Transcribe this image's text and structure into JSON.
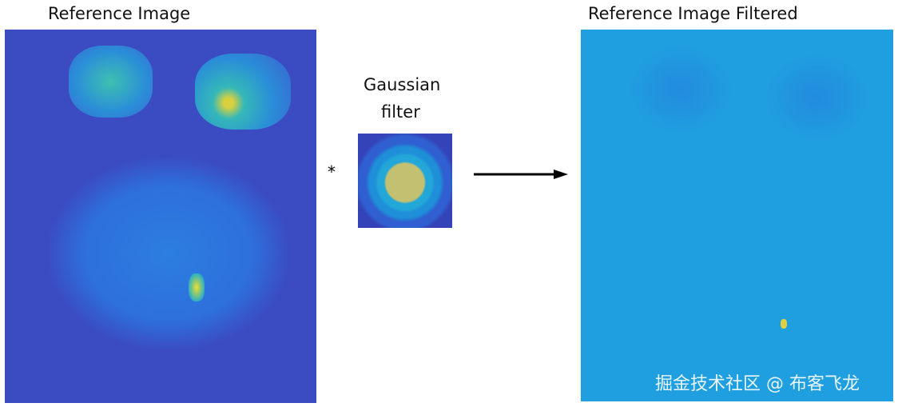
{
  "left_panel": {
    "title": "Reference Image"
  },
  "operator": "*",
  "filter": {
    "title_line1": "Gaussian",
    "title_line2": "filter"
  },
  "right_panel": {
    "title": "Reference Image Filtered"
  },
  "watermark": "掘金技术社区 @ 布客飞龙",
  "colors": {
    "reference_bg": "#3b4cc2",
    "filtered_bg": "#1f9ee0",
    "filter_center": "#c3c072",
    "arrow": "#000000"
  }
}
